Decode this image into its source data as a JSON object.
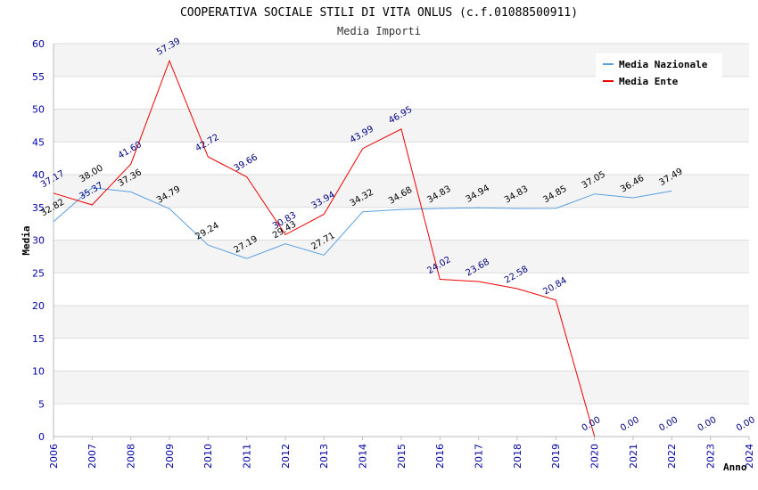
{
  "chart_data": {
    "type": "line",
    "title": "COOPERATIVA SOCIALE STILI DI VITA ONLUS (c.f.01088500911)",
    "subtitle": "Media Importi",
    "xlabel": "Anno",
    "ylabel": "Media",
    "ylim": [
      0,
      60
    ],
    "yticks": [
      0,
      5,
      10,
      15,
      20,
      25,
      30,
      35,
      40,
      45,
      50,
      55,
      60
    ],
    "x": [
      2006,
      2007,
      2008,
      2009,
      2010,
      2011,
      2012,
      2013,
      2014,
      2015,
      2016,
      2017,
      2018,
      2019,
      2020,
      2021,
      2022,
      2023,
      2024
    ],
    "grid": true,
    "legend_position": "top-right",
    "series": [
      {
        "name": "Media Nazionale",
        "color": "#5aa0e0",
        "values": [
          32.82,
          38.0,
          37.36,
          34.79,
          29.24,
          27.19,
          29.43,
          27.71,
          34.32,
          34.68,
          34.83,
          34.94,
          34.83,
          34.85,
          37.05,
          36.46,
          37.49,
          null,
          null
        ],
        "labels": [
          "32.82",
          "38.00",
          "37.36",
          "34.79",
          "29.24",
          "27.19",
          "29.43",
          "27.71",
          "34.32",
          "34.68",
          "34.83",
          "34.94",
          "34.83",
          "34.85",
          "37.05",
          "36.46",
          "37.49",
          null,
          null
        ]
      },
      {
        "name": "Media Ente",
        "color": "#ee0000",
        "values": [
          37.17,
          35.37,
          41.6,
          57.39,
          42.72,
          39.66,
          30.83,
          33.94,
          43.99,
          46.95,
          24.02,
          23.68,
          22.58,
          20.84,
          0.0,
          0.0,
          0.0,
          0.0,
          0.0
        ],
        "labels": [
          "37.17",
          "35.37",
          "41.60",
          "57.39",
          "42.72",
          "39.66",
          "30.83",
          "33.94",
          "43.99",
          "46.95",
          "24.02",
          "23.68",
          "22.58",
          "20.84",
          "0.00",
          "0.00",
          "0.00",
          "0.00",
          "0.00"
        ],
        "line_points": 15
      }
    ]
  }
}
